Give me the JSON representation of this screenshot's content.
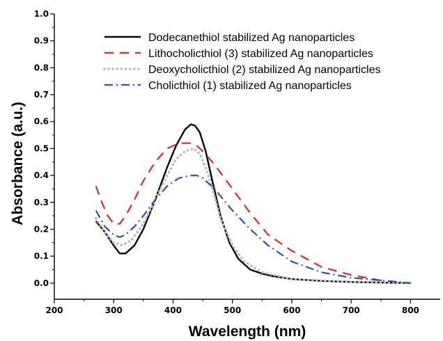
{
  "chart_data": {
    "type": "line",
    "xlabel": "Wavelength (nm)",
    "ylabel": "Absorbance (a.u.)",
    "xlim": [
      200,
      850
    ],
    "ylim": [
      -0.06,
      1.0
    ],
    "xticks": [
      "200",
      "300",
      "400",
      "500",
      "600",
      "700",
      "800"
    ],
    "yticks": [
      "0.0",
      "0.1",
      "0.2",
      "0.3",
      "0.4",
      "0.5",
      "0.6",
      "0.7",
      "0.8",
      "0.9",
      "1.0"
    ],
    "xtick_values": [
      200,
      300,
      400,
      500,
      600,
      700,
      800
    ],
    "ytick_values": [
      0.0,
      0.1,
      0.2,
      0.3,
      0.4,
      0.5,
      0.6,
      0.7,
      0.8,
      0.9,
      1.0
    ],
    "legend_position": "top-right",
    "grid": false,
    "series": [
      {
        "name": "Dodecanethiol stabilized Ag nanoparticles",
        "color": "#000000",
        "style": "solid",
        "x": [
          270,
          285,
          300,
          310,
          320,
          335,
          350,
          370,
          390,
          405,
          420,
          430,
          437,
          445,
          455,
          465,
          480,
          495,
          510,
          530,
          550,
          570,
          600,
          650,
          700,
          750,
          800
        ],
        "y": [
          0.23,
          0.19,
          0.14,
          0.11,
          0.11,
          0.14,
          0.2,
          0.31,
          0.43,
          0.51,
          0.57,
          0.59,
          0.585,
          0.56,
          0.49,
          0.39,
          0.25,
          0.15,
          0.09,
          0.05,
          0.035,
          0.025,
          0.015,
          0.008,
          0.004,
          0.002,
          0.0
        ]
      },
      {
        "name": "Lithocholicthiol (3) stabilized Ag nanoparticles",
        "color": "#e8251f",
        "style": "dashed",
        "x": [
          270,
          280,
          290,
          300,
          310,
          320,
          335,
          350,
          370,
          390,
          410,
          430,
          440,
          450,
          470,
          500,
          530,
          560,
          600,
          650,
          700,
          750,
          800
        ],
        "y": [
          0.36,
          0.3,
          0.25,
          0.22,
          0.22,
          0.25,
          0.31,
          0.38,
          0.45,
          0.5,
          0.52,
          0.52,
          0.51,
          0.49,
          0.44,
          0.35,
          0.26,
          0.18,
          0.12,
          0.06,
          0.03,
          0.01,
          0.0
        ]
      },
      {
        "name": "Deoxycholicthiol (2) stabilized Ag nanoparticles",
        "color": "#b5bcb7",
        "style": "dotted",
        "x": [
          270,
          285,
          300,
          315,
          330,
          350,
          370,
          390,
          405,
          420,
          435,
          445,
          455,
          465,
          480,
          500,
          520,
          550,
          600,
          650,
          700,
          750,
          800
        ],
        "y": [
          0.24,
          0.19,
          0.15,
          0.14,
          0.16,
          0.22,
          0.31,
          0.4,
          0.46,
          0.49,
          0.5,
          0.48,
          0.43,
          0.36,
          0.24,
          0.14,
          0.08,
          0.04,
          0.015,
          0.008,
          0.004,
          0.002,
          0.0
        ]
      },
      {
        "name": "Cholicthiol (1) stabilized Ag nanoparticles",
        "color": "#2a4ec4",
        "style": "dashdot",
        "x": [
          270,
          285,
          300,
          310,
          320,
          335,
          350,
          370,
          390,
          410,
          430,
          440,
          450,
          470,
          500,
          530,
          560,
          600,
          650,
          700,
          750,
          800
        ],
        "y": [
          0.27,
          0.21,
          0.18,
          0.17,
          0.18,
          0.21,
          0.25,
          0.31,
          0.36,
          0.39,
          0.4,
          0.4,
          0.39,
          0.35,
          0.27,
          0.2,
          0.14,
          0.08,
          0.04,
          0.02,
          0.01,
          0.0
        ]
      }
    ]
  }
}
